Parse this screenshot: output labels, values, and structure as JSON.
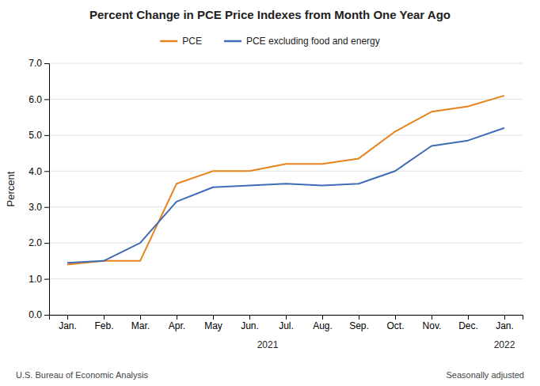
{
  "chart_data": {
    "type": "line",
    "title": "Percent Change in PCE Price Indexes from Month One Year Ago",
    "y_label": "Percent",
    "categories": [
      "Jan.",
      "Feb.",
      "Mar.",
      "Apr.",
      "May",
      "Jun.",
      "Jul.",
      "Aug.",
      "Sep.",
      "Oct.",
      "Nov.",
      "Dec.",
      "Jan."
    ],
    "series": [
      {
        "name": "PCE",
        "color": "#E8821A",
        "values": [
          1.4,
          1.5,
          1.5,
          3.65,
          4.0,
          4.0,
          4.2,
          4.2,
          4.35,
          5.1,
          5.65,
          5.8,
          6.1
        ]
      },
      {
        "name": "PCE excluding food and energy",
        "color": "#3E6DB4",
        "values": [
          1.45,
          1.5,
          2.0,
          3.15,
          3.55,
          3.6,
          3.65,
          3.6,
          3.65,
          4.0,
          4.7,
          4.85,
          5.2
        ]
      }
    ],
    "ylim": [
      0.0,
      7.0
    ],
    "yticks": [
      {
        "value": 0,
        "label": "0.0"
      },
      {
        "value": 1,
        "label": "1.0"
      },
      {
        "value": 2,
        "label": "2.0"
      },
      {
        "value": 3,
        "label": "3.0"
      },
      {
        "value": 4,
        "label": "4.0"
      },
      {
        "value": 5,
        "label": "5.0"
      },
      {
        "value": 6,
        "label": "6.0"
      },
      {
        "value": 7,
        "label": "7.0"
      }
    ],
    "grid": true,
    "legend": "top",
    "annotations": [
      {
        "text": "2021",
        "x": 5.5
      },
      {
        "text": "2022",
        "x": 12
      }
    ],
    "source": "U.S. Bureau of Economic Analysis",
    "note": "Seasonally adjusted"
  }
}
